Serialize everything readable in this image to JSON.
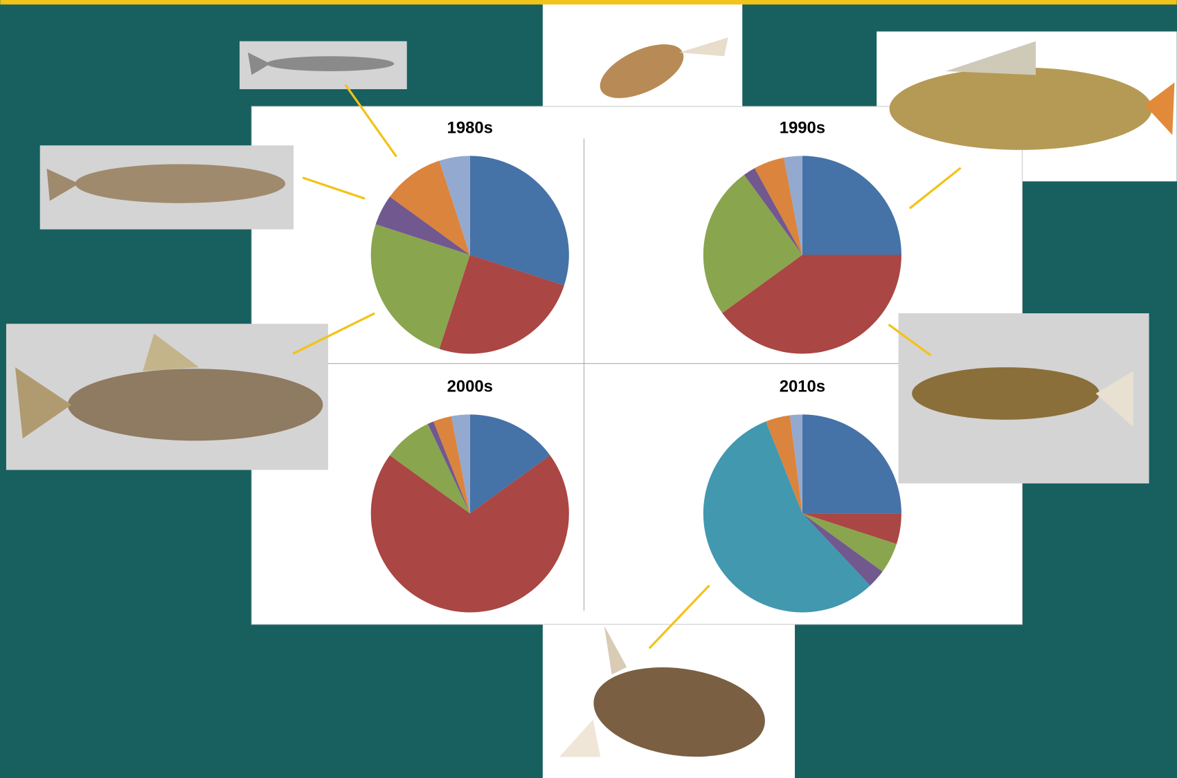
{
  "chart_data": [
    {
      "type": "pie",
      "title": "1980s",
      "values": [
        30,
        25,
        25,
        5,
        10,
        5
      ],
      "colors": [
        "#4572a7",
        "#aa4643",
        "#89a54e",
        "#71588f",
        "#db843d",
        "#93a9cf"
      ]
    },
    {
      "type": "pie",
      "title": "1990s",
      "values": [
        25,
        40,
        25,
        2,
        5,
        3
      ],
      "colors": [
        "#4572a7",
        "#aa4643",
        "#89a54e",
        "#71588f",
        "#db843d",
        "#93a9cf"
      ]
    },
    {
      "type": "pie",
      "title": "2000s",
      "values": [
        15,
        70,
        8,
        1,
        3,
        3
      ],
      "colors": [
        "#4572a7",
        "#aa4643",
        "#89a54e",
        "#71588f",
        "#db843d",
        "#93a9cf"
      ]
    },
    {
      "type": "pie",
      "title": "2010s",
      "values": [
        25,
        5,
        5,
        3,
        56,
        4,
        2
      ],
      "colors": [
        "#4572a7",
        "#aa4643",
        "#89a54e",
        "#71588f",
        "#4198af",
        "#db843d",
        "#93a9cf"
      ]
    }
  ]
}
